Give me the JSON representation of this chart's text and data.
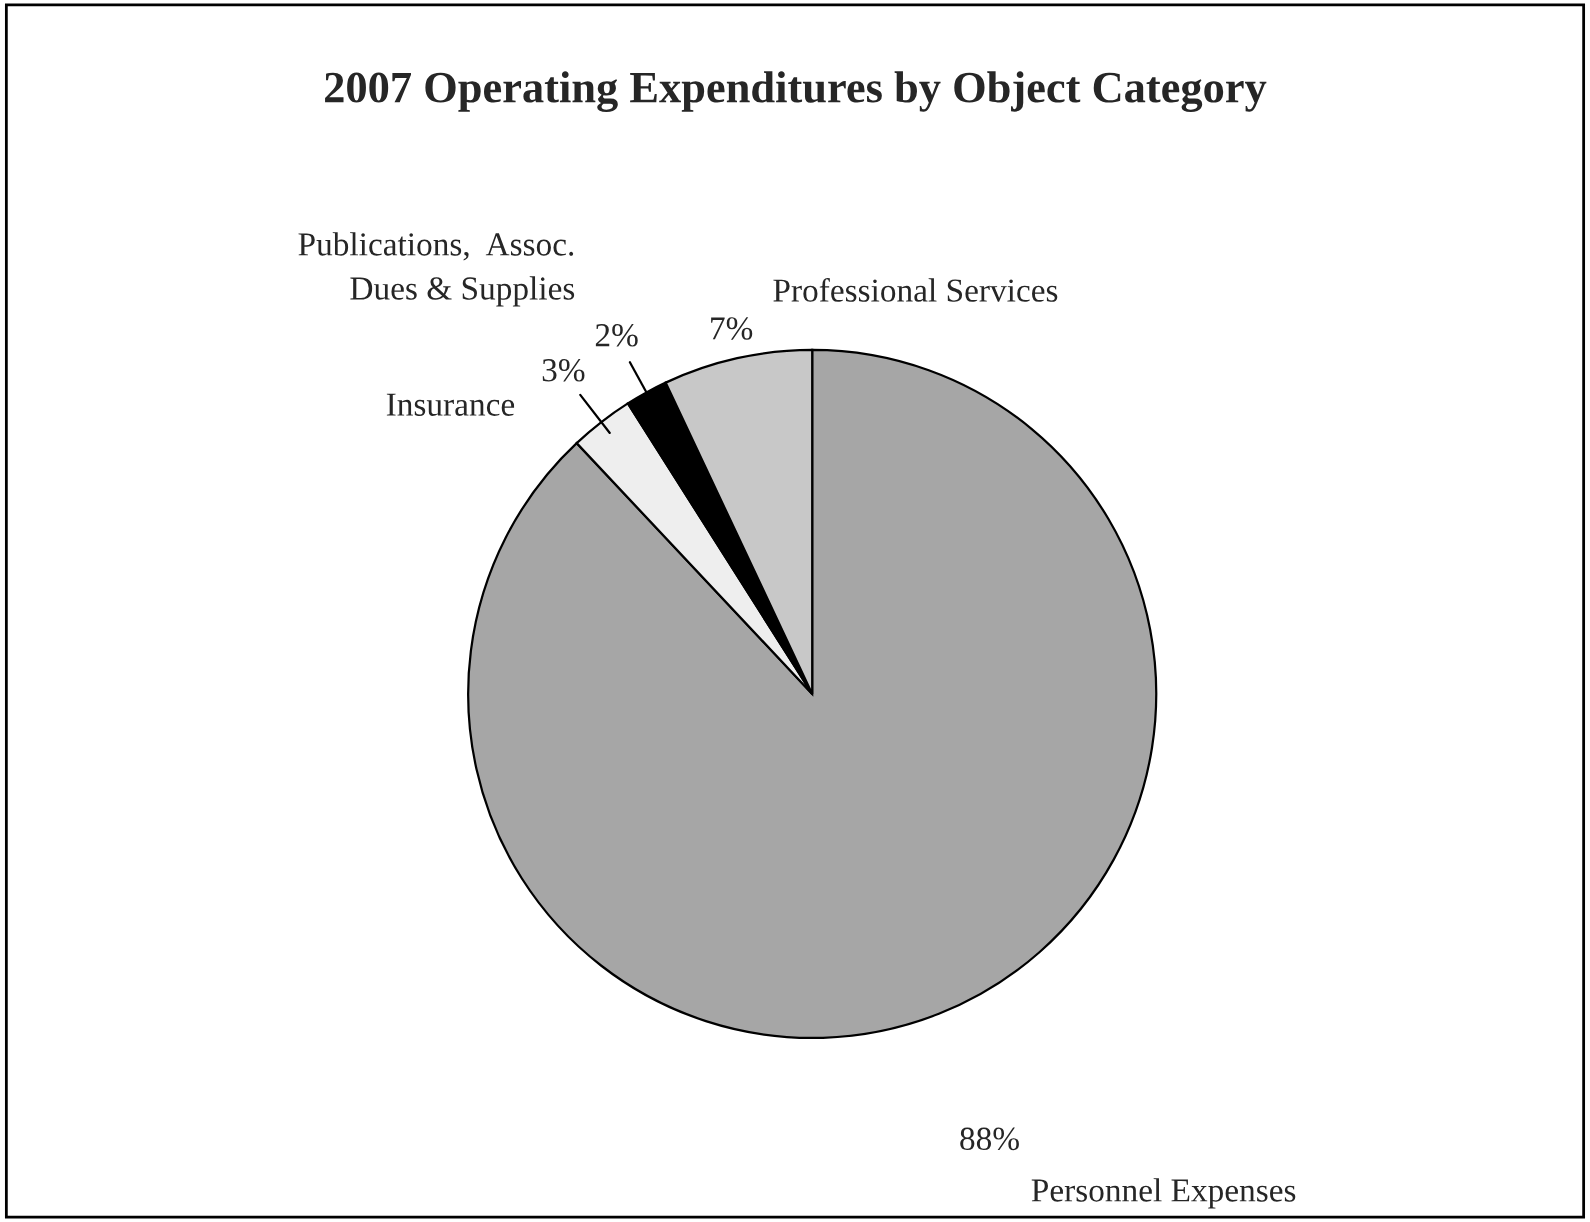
{
  "chart_data": {
    "type": "pie",
    "title": "2007 Operating Expenditures by Object Category",
    "categories": [
      "Personnel Expenses",
      "Insurance",
      "Publications,  Assoc.\nDues & Supplies",
      "Professional Services"
    ],
    "values": [
      88,
      3,
      2,
      7
    ],
    "colors": [
      "#a6a6a6",
      "#eeeeee",
      "#000000",
      "#c8c8c8"
    ],
    "value_labels": [
      "88%",
      "3%",
      "2%",
      "7%"
    ]
  }
}
